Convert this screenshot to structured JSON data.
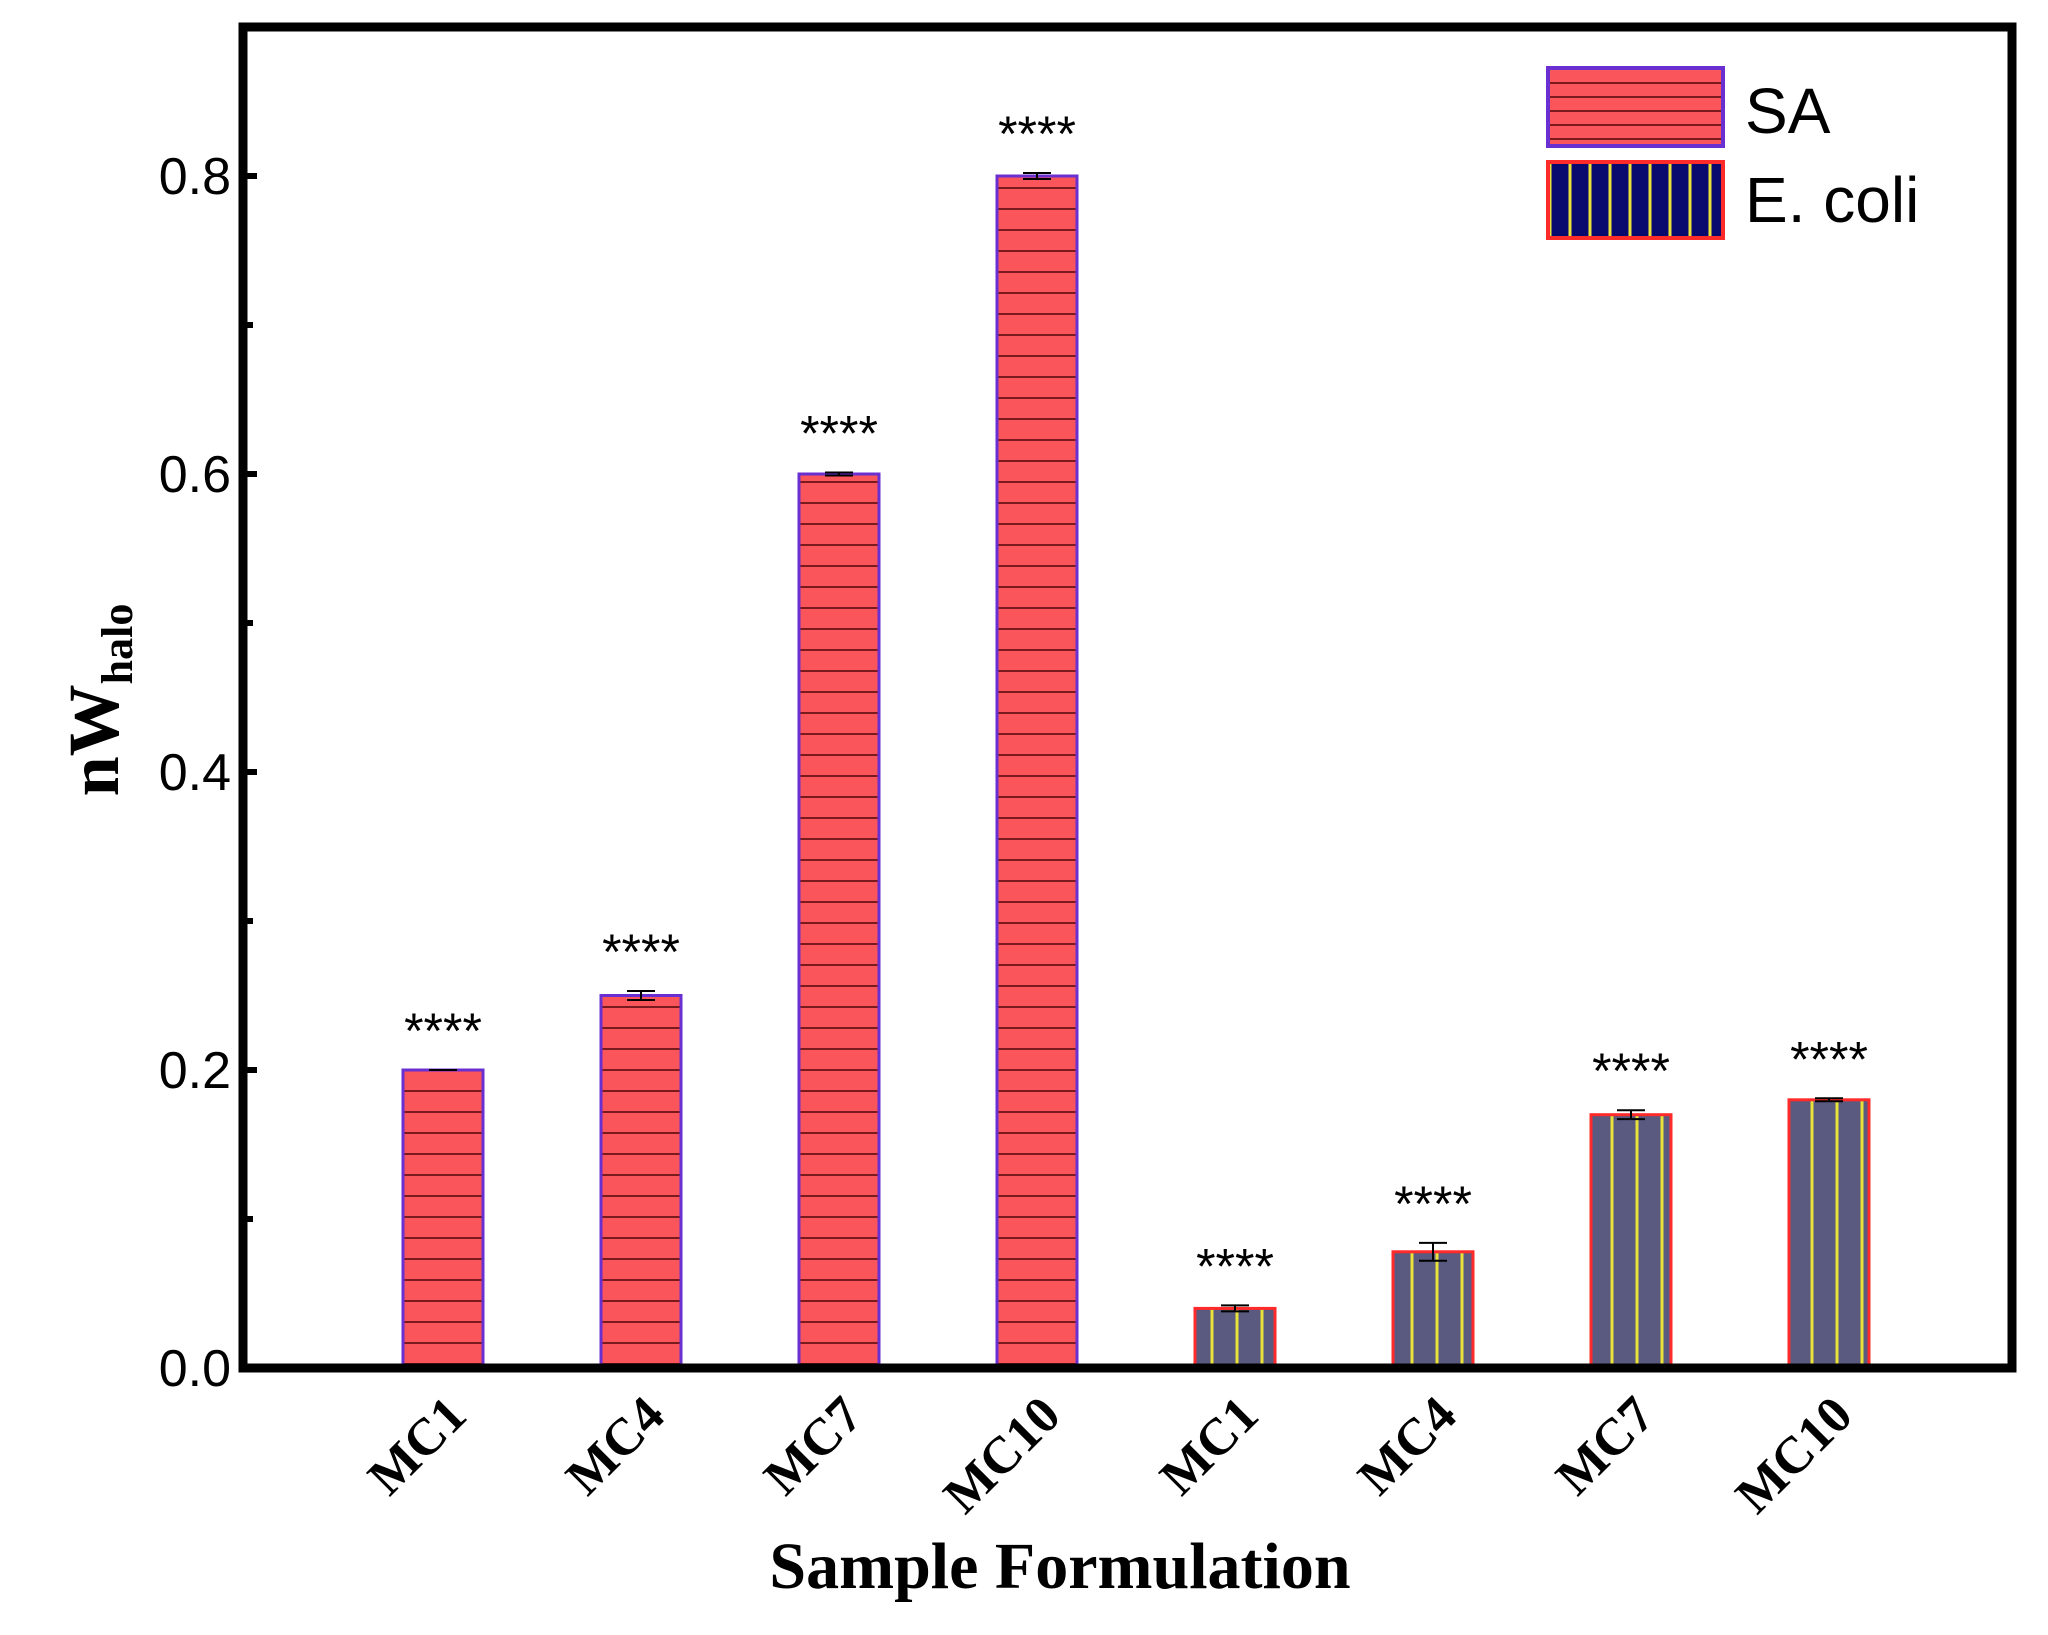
{
  "chart_data": {
    "type": "bar",
    "title": "",
    "xlabel": "Sample Formulation",
    "ylabel": {
      "main": "nW",
      "sub": "halo"
    },
    "ylim": [
      0,
      0.9
    ],
    "yticks": [
      0.0,
      0.2,
      0.4,
      0.6,
      0.8
    ],
    "ytick_labels": [
      "0.0",
      "0.2",
      "0.4",
      "0.6",
      "0.8"
    ],
    "grid": false,
    "legend_position": "top-right",
    "categories": [
      "MC1",
      "MC4",
      "MC7",
      "MC10",
      "MC1",
      "MC4",
      "MC7",
      "MC10"
    ],
    "series": [
      {
        "name": "SA",
        "fill": "#f9555a",
        "edge": "#6a2fd0",
        "pattern": "horizontal-lines",
        "pattern_color": "#7a1a1e",
        "bars": [
          {
            "category": "MC1",
            "value": 0.2,
            "error": 0.0,
            "significance": "****"
          },
          {
            "category": "MC4",
            "value": 0.25,
            "error": 0.003,
            "significance": "****"
          },
          {
            "category": "MC7",
            "value": 0.6,
            "error": 0.001,
            "significance": "****"
          },
          {
            "category": "MC10",
            "value": 0.8,
            "error": 0.002,
            "significance": "****"
          }
        ]
      },
      {
        "name": "E. coli",
        "fill": "#5a5a80",
        "legend_fill": "#0a0a6e",
        "edge": "#ff2a2a",
        "pattern": "vertical-lines",
        "pattern_color": "#e8e23a",
        "bars": [
          {
            "category": "MC1",
            "value": 0.04,
            "error": 0.002,
            "significance": "****"
          },
          {
            "category": "MC4",
            "value": 0.078,
            "error": 0.006,
            "significance": "****"
          },
          {
            "category": "MC7",
            "value": 0.17,
            "error": 0.003,
            "significance": "****"
          },
          {
            "category": "MC10",
            "value": 0.18,
            "error": 0.001,
            "significance": "****"
          }
        ]
      }
    ]
  }
}
